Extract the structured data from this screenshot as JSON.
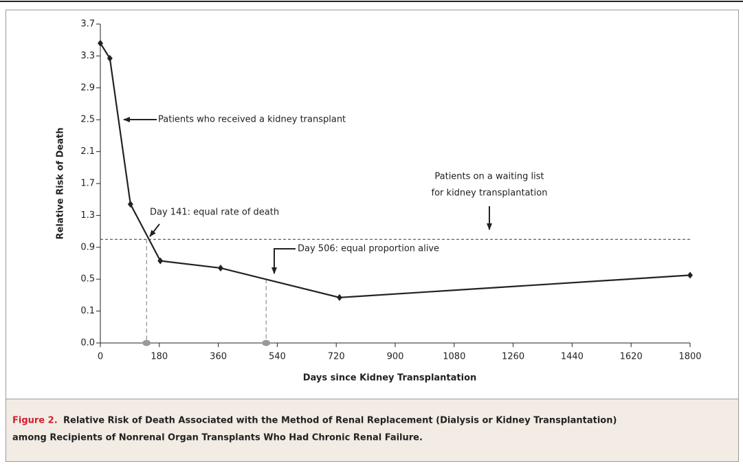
{
  "chart_data": {
    "type": "line",
    "y_label": "Relative Risk of Death",
    "x_label": "Days since Kidney Transplantation",
    "x": [
      0,
      29,
      92,
      183,
      367,
      730,
      1800
    ],
    "series": [
      {
        "color": "#222222",
        "values": [
          3.46,
          3.27,
          1.44,
          0.73,
          0.64,
          0.27,
          0.55
        ]
      }
    ],
    "xlim": [
      0,
      1800
    ],
    "xticks": [
      0,
      180,
      360,
      540,
      720,
      900,
      1080,
      1260,
      1440,
      1620,
      1800
    ],
    "ylim": [
      0,
      3.7
    ],
    "yticks": [
      {
        "value": 0,
        "label": "0.0"
      },
      0.1,
      0.5,
      0.9,
      1.3,
      1.7,
      2.1,
      2.5,
      2.9,
      3.3,
      3.7
    ],
    "reference_line_y": 1.0,
    "reference_lines_x": [
      141,
      506
    ],
    "annotations": [
      "Patients who received a kidney transplant",
      "Day 141: equal rate of death",
      "Day 506: equal proportion alive",
      "Patients on a waiting list",
      "for kidney transplantation"
    ]
  },
  "caption": {
    "label": "Figure 2.",
    "text_line1": "Relative Risk of Death Associated with the Method of Renal Replacement (Dialysis or Kidney Transplantation)",
    "text_line2": "among Recipients of Nonrenal Organ Transplants Who Had Chronic Renal Failure."
  }
}
